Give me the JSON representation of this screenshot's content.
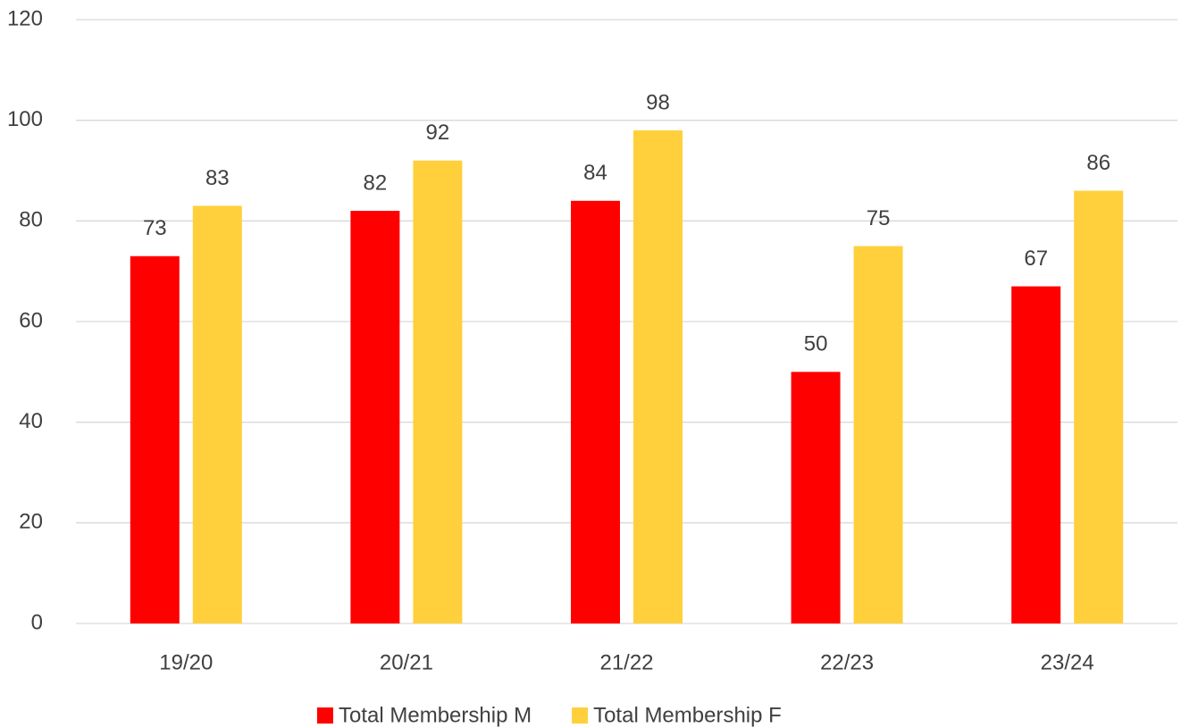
{
  "chart_data": {
    "type": "bar",
    "categories": [
      "19/20",
      "20/21",
      "21/22",
      "22/23",
      "23/24"
    ],
    "series": [
      {
        "name": "Total Membership M",
        "color": "#ff0000",
        "values": [
          73,
          82,
          84,
          50,
          67
        ]
      },
      {
        "name": "Total Membership F",
        "color": "#ffd03c",
        "values": [
          83,
          92,
          98,
          75,
          86
        ]
      }
    ],
    "ylim": [
      0,
      120
    ],
    "yticks": [
      0,
      20,
      40,
      60,
      80,
      100,
      120
    ],
    "grid": true,
    "legend": "bottom",
    "data_labels": true
  }
}
